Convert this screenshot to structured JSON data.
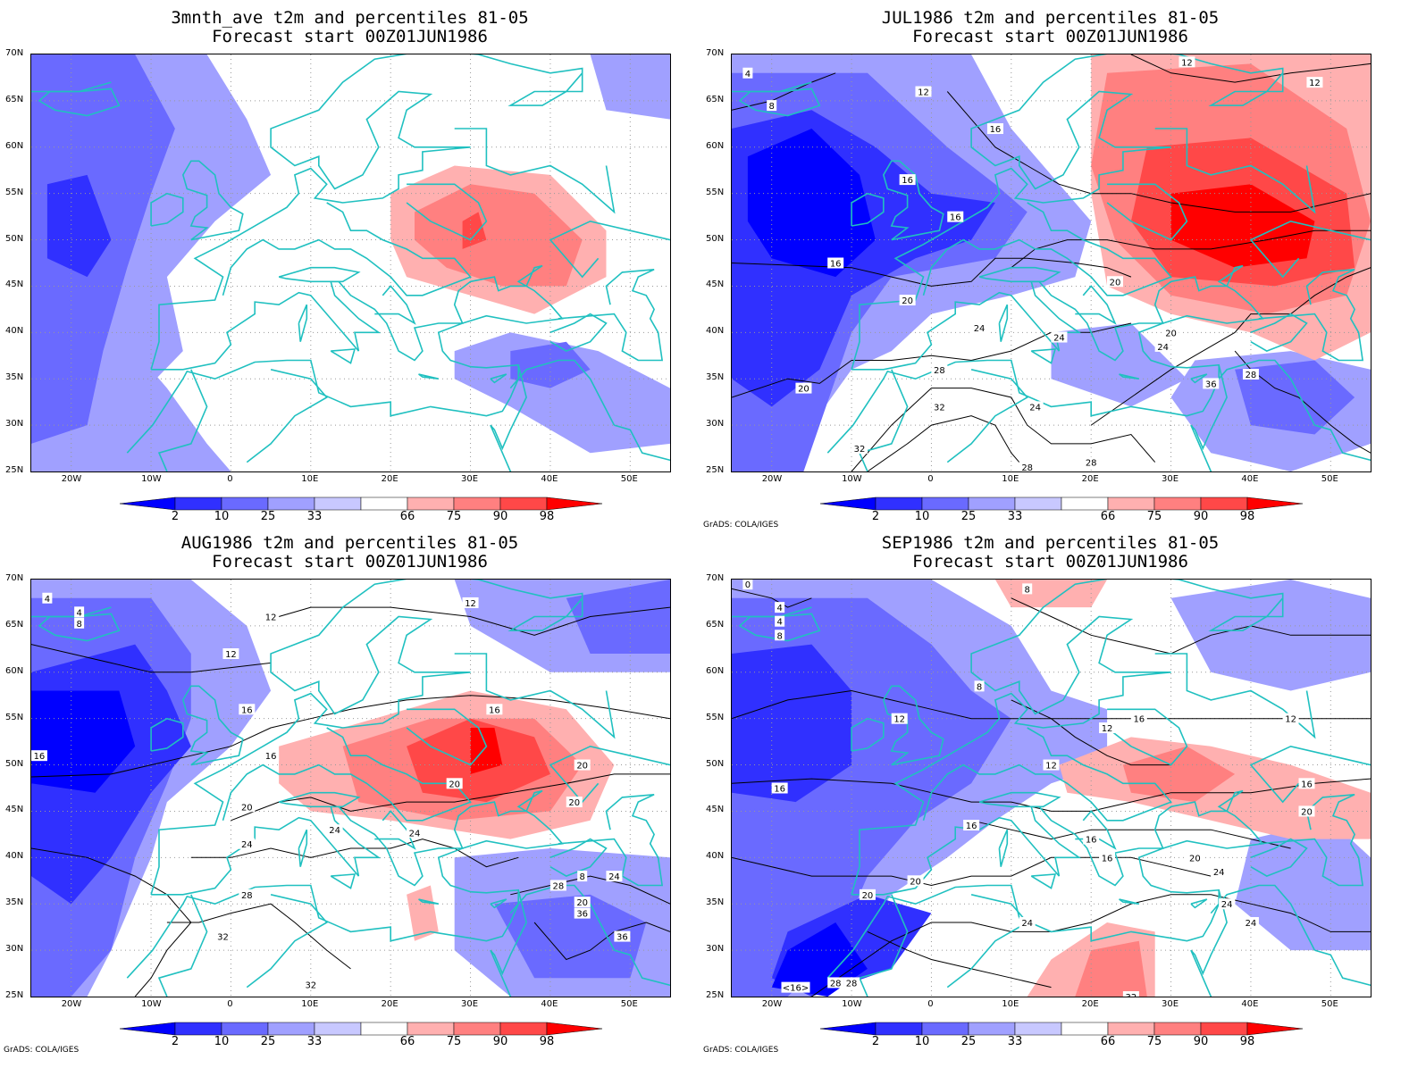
{
  "panels": [
    {
      "title": "3mnth_ave t2m and percentiles 81-05",
      "subtitle": "Forecast start 00Z01JUN1986",
      "credit": "",
      "contours": []
    },
    {
      "title": "JUL1986 t2m and percentiles 81-05",
      "subtitle": "Forecast start 00Z01JUN1986",
      "credit": "GrADS: COLA/IGES",
      "contours": [
        "4",
        "8",
        "12",
        "12",
        "12",
        "16",
        "16",
        "16",
        "16",
        "20",
        "20",
        "20",
        "24",
        "24",
        "24",
        "28",
        "28",
        "32",
        "32",
        "36",
        "20",
        "24",
        "28",
        "28"
      ]
    },
    {
      "title": "AUG1986 t2m and percentiles 81-05",
      "subtitle": "Forecast start 00Z01JUN1986",
      "credit": "GrADS: COLA/IGES",
      "contours": [
        "4",
        "4",
        "8",
        "12",
        "12",
        "12",
        "16",
        "16",
        "16",
        "16",
        "20",
        "20",
        "20",
        "20",
        "24",
        "24",
        "24",
        "24",
        "28",
        "28",
        "32",
        "32",
        "36",
        "36",
        "20",
        "8"
      ]
    },
    {
      "title": "SEP1986 t2m and percentiles 81-05",
      "subtitle": "Forecast start 00Z01JUN1986",
      "credit": "GrADS: COLA/IGES",
      "contours": [
        "0",
        "4",
        "4",
        "8",
        "8",
        "8",
        "12",
        "12",
        "12",
        "12",
        "16",
        "16",
        "16",
        "16",
        "16",
        "16",
        "20",
        "20",
        "20",
        "20",
        "24",
        "24",
        "24",
        "24",
        "28",
        "28",
        "32",
        "<16>"
      ]
    }
  ],
  "lat_labels": [
    "70N",
    "65N",
    "60N",
    "55N",
    "50N",
    "45N",
    "40N",
    "35N",
    "30N",
    "25N"
  ],
  "lon_labels": [
    "20W",
    "10W",
    "0",
    "10E",
    "20E",
    "30E",
    "40E",
    "50E"
  ],
  "colorbar": {
    "labels": [
      "2",
      "10",
      "25",
      "33",
      "66",
      "75",
      "90",
      "98"
    ],
    "colors": [
      "#0000ff",
      "#3030ff",
      "#6a6aff",
      "#a0a0ff",
      "#c8c8ff",
      "#ffffff",
      "#ffb0b0",
      "#ff8080",
      "#ff4848",
      "#ff0000"
    ]
  },
  "colors": {
    "coast": "#20c0c0",
    "contour": "#000000",
    "grid": "#999999"
  }
}
